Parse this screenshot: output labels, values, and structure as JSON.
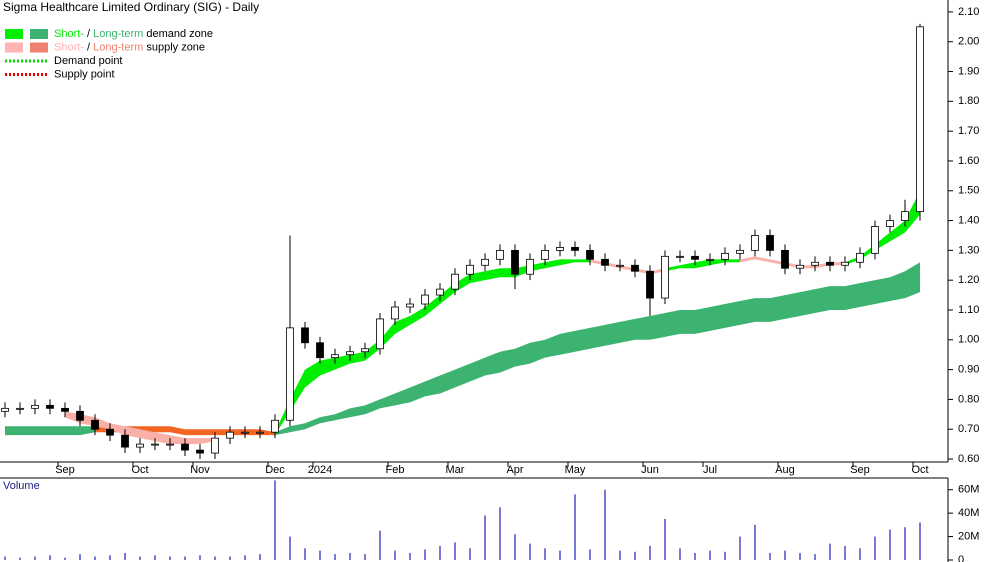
{
  "chart_data": [
    {
      "type": "candlestick",
      "title": "Sigma Healthcare Limited Ordinary (SIG) - Daily",
      "categories": [
        null,
        null,
        null,
        null,
        "Sep",
        null,
        null,
        null,
        null,
        "Oct",
        null,
        null,
        null,
        "Nov",
        null,
        null,
        null,
        null,
        "Dec",
        null,
        null,
        "2024",
        null,
        null,
        null,
        null,
        "Feb",
        null,
        null,
        null,
        "Mar",
        null,
        null,
        null,
        "Apr",
        null,
        null,
        null,
        "May",
        null,
        null,
        null,
        null,
        "Jun",
        null,
        null,
        null,
        "Jul",
        null,
        null,
        null,
        null,
        "Aug",
        null,
        null,
        null,
        null,
        "Sep",
        null,
        null,
        null,
        "Oct"
      ],
      "open": [
        0.76,
        0.77,
        0.77,
        0.78,
        0.77,
        0.76,
        0.73,
        0.7,
        0.68,
        0.64,
        0.65,
        0.65,
        0.65,
        0.63,
        0.62,
        0.67,
        0.69,
        0.69,
        0.69,
        0.73,
        1.04,
        0.99,
        0.94,
        0.95,
        0.96,
        0.97,
        1.07,
        1.11,
        1.12,
        1.15,
        1.17,
        1.22,
        1.25,
        1.27,
        1.3,
        1.22,
        1.27,
        1.3,
        1.31,
        1.3,
        1.27,
        1.25,
        1.25,
        1.23,
        1.14,
        1.28,
        1.28,
        1.27,
        1.27,
        1.29,
        1.3,
        1.35,
        1.3,
        1.24,
        1.25,
        1.26,
        1.25,
        1.26,
        1.29,
        1.38,
        1.4,
        1.43
      ],
      "high": [
        0.79,
        0.79,
        0.8,
        0.8,
        0.79,
        0.78,
        0.75,
        0.72,
        0.7,
        0.67,
        0.67,
        0.67,
        0.67,
        0.65,
        0.69,
        0.71,
        0.71,
        0.71,
        0.75,
        1.35,
        1.06,
        1.01,
        0.97,
        0.98,
        0.99,
        1.09,
        1.13,
        1.14,
        1.17,
        1.19,
        1.24,
        1.27,
        1.29,
        1.32,
        1.32,
        1.29,
        1.32,
        1.33,
        1.33,
        1.32,
        1.29,
        1.27,
        1.27,
        1.25,
        1.3,
        1.3,
        1.3,
        1.29,
        1.31,
        1.32,
        1.37,
        1.37,
        1.32,
        1.27,
        1.28,
        1.28,
        1.28,
        1.31,
        1.4,
        1.42,
        1.47,
        2.06
      ],
      "low": [
        0.74,
        0.75,
        0.75,
        0.75,
        0.74,
        0.71,
        0.68,
        0.66,
        0.62,
        0.62,
        0.63,
        0.63,
        0.61,
        0.6,
        0.6,
        0.65,
        0.67,
        0.67,
        0.67,
        0.71,
        0.97,
        0.92,
        0.92,
        0.93,
        0.94,
        0.95,
        1.05,
        1.09,
        1.1,
        1.13,
        1.15,
        1.2,
        1.23,
        1.25,
        1.17,
        1.2,
        1.25,
        1.28,
        1.28,
        1.25,
        1.23,
        1.23,
        1.21,
        1.08,
        1.12,
        1.26,
        1.25,
        1.25,
        1.25,
        1.27,
        1.28,
        1.28,
        1.22,
        1.22,
        1.23,
        1.23,
        1.23,
        1.24,
        1.27,
        1.36,
        1.38,
        1.4
      ],
      "close": [
        0.77,
        0.77,
        0.78,
        0.77,
        0.76,
        0.73,
        0.7,
        0.68,
        0.64,
        0.65,
        0.65,
        0.65,
        0.63,
        0.62,
        0.67,
        0.69,
        0.69,
        0.69,
        0.73,
        1.04,
        0.99,
        0.94,
        0.95,
        0.96,
        0.97,
        1.07,
        1.11,
        1.12,
        1.15,
        1.17,
        1.22,
        1.25,
        1.27,
        1.3,
        1.22,
        1.27,
        1.3,
        1.31,
        1.3,
        1.27,
        1.25,
        1.25,
        1.23,
        1.14,
        1.28,
        1.28,
        1.27,
        1.27,
        1.29,
        1.3,
        1.35,
        1.3,
        1.24,
        1.25,
        1.26,
        1.25,
        1.26,
        1.29,
        1.38,
        1.4,
        1.43,
        2.05
      ],
      "zones": [
        {
          "color": "#3cb371",
          "lower": [
            0.68,
            0.68,
            0.68,
            0.68,
            0.68,
            0.68,
            0.69,
            null,
            null,
            null,
            null,
            null,
            null,
            null,
            null,
            null,
            null,
            null,
            0.68,
            0.69,
            0.7,
            0.72,
            0.73,
            0.74,
            0.75,
            0.77,
            0.78,
            0.79,
            0.81,
            0.82,
            0.84,
            0.86,
            0.88,
            0.89,
            0.91,
            0.92,
            0.94,
            0.95,
            0.96,
            0.97,
            0.98,
            0.99,
            1.0,
            1.0,
            1.01,
            1.02,
            1.02,
            1.03,
            1.04,
            1.05,
            1.06,
            1.06,
            1.07,
            1.08,
            1.09,
            1.1,
            1.1,
            1.11,
            1.12,
            1.13,
            1.14,
            1.16
          ],
          "upper": [
            0.71,
            0.71,
            0.71,
            0.71,
            0.71,
            0.71,
            0.71,
            null,
            null,
            null,
            null,
            null,
            null,
            null,
            null,
            null,
            null,
            null,
            0.69,
            0.71,
            0.72,
            0.74,
            0.75,
            0.77,
            0.78,
            0.8,
            0.82,
            0.84,
            0.86,
            0.88,
            0.9,
            0.92,
            0.94,
            0.96,
            0.97,
            0.99,
            1.0,
            1.02,
            1.03,
            1.04,
            1.05,
            1.06,
            1.07,
            1.08,
            1.09,
            1.1,
            1.1,
            1.11,
            1.12,
            1.13,
            1.14,
            1.14,
            1.15,
            1.16,
            1.17,
            1.18,
            1.18,
            1.19,
            1.2,
            1.21,
            1.23,
            1.26
          ]
        },
        {
          "color": "#f26522",
          "lower": [
            null,
            null,
            null,
            null,
            null,
            null,
            0.69,
            0.69,
            0.69,
            0.69,
            0.69,
            0.69,
            0.68,
            0.68,
            0.68,
            0.68,
            0.68,
            0.68,
            0.68,
            null,
            null,
            null,
            null,
            null,
            null,
            null,
            null,
            null,
            null,
            null,
            null,
            null,
            null,
            null,
            null,
            null,
            null,
            null,
            null,
            null,
            null,
            null,
            null,
            null,
            null,
            null,
            null,
            null,
            null,
            null,
            null,
            null,
            null,
            null,
            null,
            null,
            null,
            null,
            null,
            null,
            null,
            null
          ],
          "upper": [
            null,
            null,
            null,
            null,
            null,
            null,
            0.71,
            0.71,
            0.71,
            0.71,
            0.71,
            0.71,
            0.7,
            0.7,
            0.7,
            0.7,
            0.7,
            0.7,
            0.69,
            null,
            null,
            null,
            null,
            null,
            null,
            null,
            null,
            null,
            null,
            null,
            null,
            null,
            null,
            null,
            null,
            null,
            null,
            null,
            null,
            null,
            null,
            null,
            null,
            null,
            null,
            null,
            null,
            null,
            null,
            null,
            null,
            null,
            null,
            null,
            null,
            null,
            null,
            null,
            null,
            null,
            null,
            null
          ]
        },
        {
          "color": "#f9b0a8",
          "lower": [
            null,
            null,
            null,
            null,
            0.74,
            0.72,
            0.71,
            0.7,
            0.68,
            0.67,
            0.66,
            0.65,
            0.65,
            0.65,
            0.66,
            null,
            null,
            null,
            null,
            null,
            null,
            null,
            null,
            null,
            null,
            null,
            null,
            null,
            null,
            null,
            null,
            null,
            null,
            null,
            null,
            null,
            null,
            null,
            null,
            1.26,
            1.25,
            1.24,
            1.23,
            1.22,
            1.23,
            null,
            null,
            null,
            null,
            1.26,
            1.27,
            1.26,
            1.25,
            1.24,
            1.24,
            1.25,
            1.25,
            null,
            null,
            null,
            null,
            null
          ],
          "upper": [
            null,
            null,
            null,
            null,
            0.76,
            0.75,
            0.74,
            0.72,
            0.71,
            0.7,
            0.69,
            0.68,
            0.67,
            0.67,
            0.67,
            null,
            null,
            null,
            null,
            null,
            null,
            null,
            null,
            null,
            null,
            null,
            null,
            null,
            null,
            null,
            null,
            null,
            null,
            null,
            null,
            null,
            null,
            null,
            null,
            1.27,
            1.26,
            1.25,
            1.24,
            1.23,
            1.24,
            null,
            null,
            null,
            null,
            1.27,
            1.28,
            1.27,
            1.26,
            1.25,
            1.25,
            1.26,
            1.26,
            null,
            null,
            null,
            null,
            null
          ]
        },
        {
          "color": "#00ee00",
          "lower": [
            null,
            null,
            null,
            null,
            null,
            null,
            null,
            null,
            null,
            null,
            null,
            null,
            null,
            null,
            null,
            null,
            null,
            null,
            0.68,
            0.76,
            0.84,
            0.88,
            0.9,
            0.92,
            0.93,
            0.97,
            1.02,
            1.05,
            1.08,
            1.12,
            1.16,
            1.19,
            1.2,
            1.21,
            1.21,
            1.23,
            1.24,
            1.25,
            1.26,
            1.26,
            null,
            null,
            null,
            null,
            1.23,
            1.24,
            1.24,
            1.25,
            1.26,
            1.26,
            null,
            null,
            null,
            null,
            null,
            null,
            1.25,
            1.27,
            1.3,
            1.33,
            1.36,
            1.42
          ],
          "upper": [
            null,
            null,
            null,
            null,
            null,
            null,
            null,
            null,
            null,
            null,
            null,
            null,
            null,
            null,
            null,
            null,
            null,
            null,
            0.69,
            0.8,
            0.9,
            0.93,
            0.94,
            0.95,
            0.96,
            1.0,
            1.06,
            1.08,
            1.11,
            1.15,
            1.19,
            1.22,
            1.23,
            1.24,
            1.24,
            1.25,
            1.26,
            1.27,
            1.27,
            1.27,
            null,
            null,
            null,
            null,
            1.24,
            1.25,
            1.26,
            1.27,
            1.27,
            1.27,
            null,
            null,
            null,
            null,
            null,
            null,
            1.26,
            1.28,
            1.32,
            1.36,
            1.4,
            1.5
          ]
        }
      ],
      "legend": [
        {
          "parts": [
            "Short-",
            " / ",
            "Long-term",
            " demand zone"
          ],
          "colors": [
            "#00ee00",
            "#3cb371"
          ],
          "style": "zone"
        },
        {
          "parts": [
            "Short-",
            " / ",
            "Long-term",
            " supply zone"
          ],
          "colors": [
            "#ffb3b3",
            "#f08070"
          ],
          "style": "zone"
        },
        {
          "parts": [
            "Demand point"
          ],
          "colors": [
            "#00dd00"
          ],
          "style": "point"
        },
        {
          "parts": [
            "Supply point"
          ],
          "colors": [
            "#ee0000"
          ],
          "style": "point"
        }
      ],
      "ylim": [
        0.59,
        2.14
      ],
      "yticks": [
        {
          "value": 0.6,
          "label": "0.60"
        },
        {
          "value": 0.7,
          "label": "0.70"
        },
        {
          "value": 0.8,
          "label": "0.80"
        },
        {
          "value": 0.9,
          "label": "0.90"
        },
        {
          "value": 1.0,
          "label": "1.00"
        },
        {
          "value": 1.1,
          "label": "1.10"
        },
        {
          "value": 1.2,
          "label": "1.20"
        },
        {
          "value": 1.3,
          "label": "1.30"
        },
        {
          "value": 1.4,
          "label": "1.40"
        },
        {
          "value": 1.5,
          "label": "1.50"
        },
        {
          "value": 1.6,
          "label": "1.60"
        },
        {
          "value": 1.7,
          "label": "1.70"
        },
        {
          "value": 1.8,
          "label": "1.80"
        },
        {
          "value": 1.9,
          "label": "1.90"
        },
        {
          "value": 2.0,
          "label": "2.00"
        },
        {
          "value": 2.1,
          "label": "2.10"
        }
      ]
    },
    {
      "type": "bar",
      "title": "Volume",
      "values": [
        3,
        2,
        3,
        4,
        2,
        5,
        3,
        4,
        6,
        3,
        4,
        3,
        3,
        4,
        3,
        3,
        4,
        5,
        68,
        20,
        10,
        8,
        5,
        6,
        5,
        25,
        8,
        6,
        9,
        12,
        15,
        10,
        38,
        45,
        22,
        14,
        10,
        8,
        56,
        9,
        60,
        8,
        7,
        12,
        35,
        10,
        6,
        8,
        7,
        20,
        30,
        6,
        8,
        6,
        5,
        14,
        12,
        10,
        20,
        26,
        28,
        32
      ],
      "color": "#4b4bc8",
      "ylim": [
        0,
        70
      ],
      "yticks": [
        0,
        {
          "value": 20,
          "label": "20M"
        },
        {
          "value": 40,
          "label": "40M"
        },
        {
          "value": 60,
          "label": "60M"
        }
      ]
    }
  ]
}
